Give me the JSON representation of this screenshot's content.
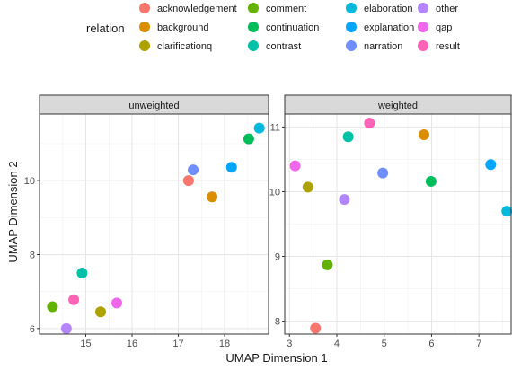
{
  "chart_data": {
    "type": "scatter",
    "xlabel": "UMAP Dimension 1",
    "ylabel": "UMAP Dimension 2",
    "legend": {
      "title": "relation",
      "placement": "top",
      "entries": [
        {
          "name": "acknowledgement",
          "color": "#F8766D"
        },
        {
          "name": "background",
          "color": "#DB8E00"
        },
        {
          "name": "clarificationq",
          "color": "#AEA200"
        },
        {
          "name": "comment",
          "color": "#64B200"
        },
        {
          "name": "continuation",
          "color": "#00BD5C"
        },
        {
          "name": "contrast",
          "color": "#00C1A7"
        },
        {
          "name": "elaboration",
          "color": "#00BADE"
        },
        {
          "name": "explanation",
          "color": "#00A6FF"
        },
        {
          "name": "narration",
          "color": "#6F8EFF"
        },
        {
          "name": "other",
          "color": "#B385FF"
        },
        {
          "name": "qap",
          "color": "#EF67EB"
        },
        {
          "name": "result",
          "color": "#FF63B6"
        }
      ]
    },
    "panels": [
      {
        "label": "unweighted",
        "xlim": [
          14.0,
          18.95
        ],
        "ylim": [
          5.85,
          11.8
        ],
        "xticks": [
          15,
          16,
          17,
          18
        ],
        "yticks": [
          6,
          8,
          10
        ],
        "points": [
          {
            "relation": "acknowledgement",
            "x": 17.22,
            "y": 10.0
          },
          {
            "relation": "background",
            "x": 17.73,
            "y": 9.56
          },
          {
            "relation": "clarificationq",
            "x": 15.32,
            "y": 6.45
          },
          {
            "relation": "comment",
            "x": 14.28,
            "y": 6.59
          },
          {
            "relation": "continuation",
            "x": 18.52,
            "y": 11.13
          },
          {
            "relation": "contrast",
            "x": 14.92,
            "y": 7.5
          },
          {
            "relation": "elaboration",
            "x": 18.75,
            "y": 11.42
          },
          {
            "relation": "explanation",
            "x": 18.15,
            "y": 10.36
          },
          {
            "relation": "narration",
            "x": 17.32,
            "y": 10.29
          },
          {
            "relation": "other",
            "x": 14.58,
            "y": 6.0
          },
          {
            "relation": "qap",
            "x": 15.67,
            "y": 6.69
          },
          {
            "relation": "result",
            "x": 14.74,
            "y": 6.78
          }
        ]
      },
      {
        "label": "weighted",
        "xlim": [
          2.9,
          7.68
        ],
        "ylim": [
          7.8,
          11.2
        ],
        "xticks": [
          3,
          4,
          5,
          6,
          7
        ],
        "yticks": [
          8,
          9,
          10,
          11
        ],
        "points": [
          {
            "relation": "acknowledgement",
            "x": 3.55,
            "y": 7.89
          },
          {
            "relation": "background",
            "x": 5.84,
            "y": 10.88
          },
          {
            "relation": "clarificationq",
            "x": 3.39,
            "y": 10.07
          },
          {
            "relation": "comment",
            "x": 3.8,
            "y": 8.87
          },
          {
            "relation": "continuation",
            "x": 5.99,
            "y": 10.16
          },
          {
            "relation": "contrast",
            "x": 4.24,
            "y": 10.85
          },
          {
            "relation": "elaboration",
            "x": 7.59,
            "y": 9.7
          },
          {
            "relation": "explanation",
            "x": 7.25,
            "y": 10.42
          },
          {
            "relation": "narration",
            "x": 4.97,
            "y": 10.29
          },
          {
            "relation": "other",
            "x": 4.16,
            "y": 9.88
          },
          {
            "relation": "qap",
            "x": 3.12,
            "y": 10.4
          },
          {
            "relation": "result",
            "x": 4.69,
            "y": 11.06
          }
        ]
      }
    ]
  }
}
